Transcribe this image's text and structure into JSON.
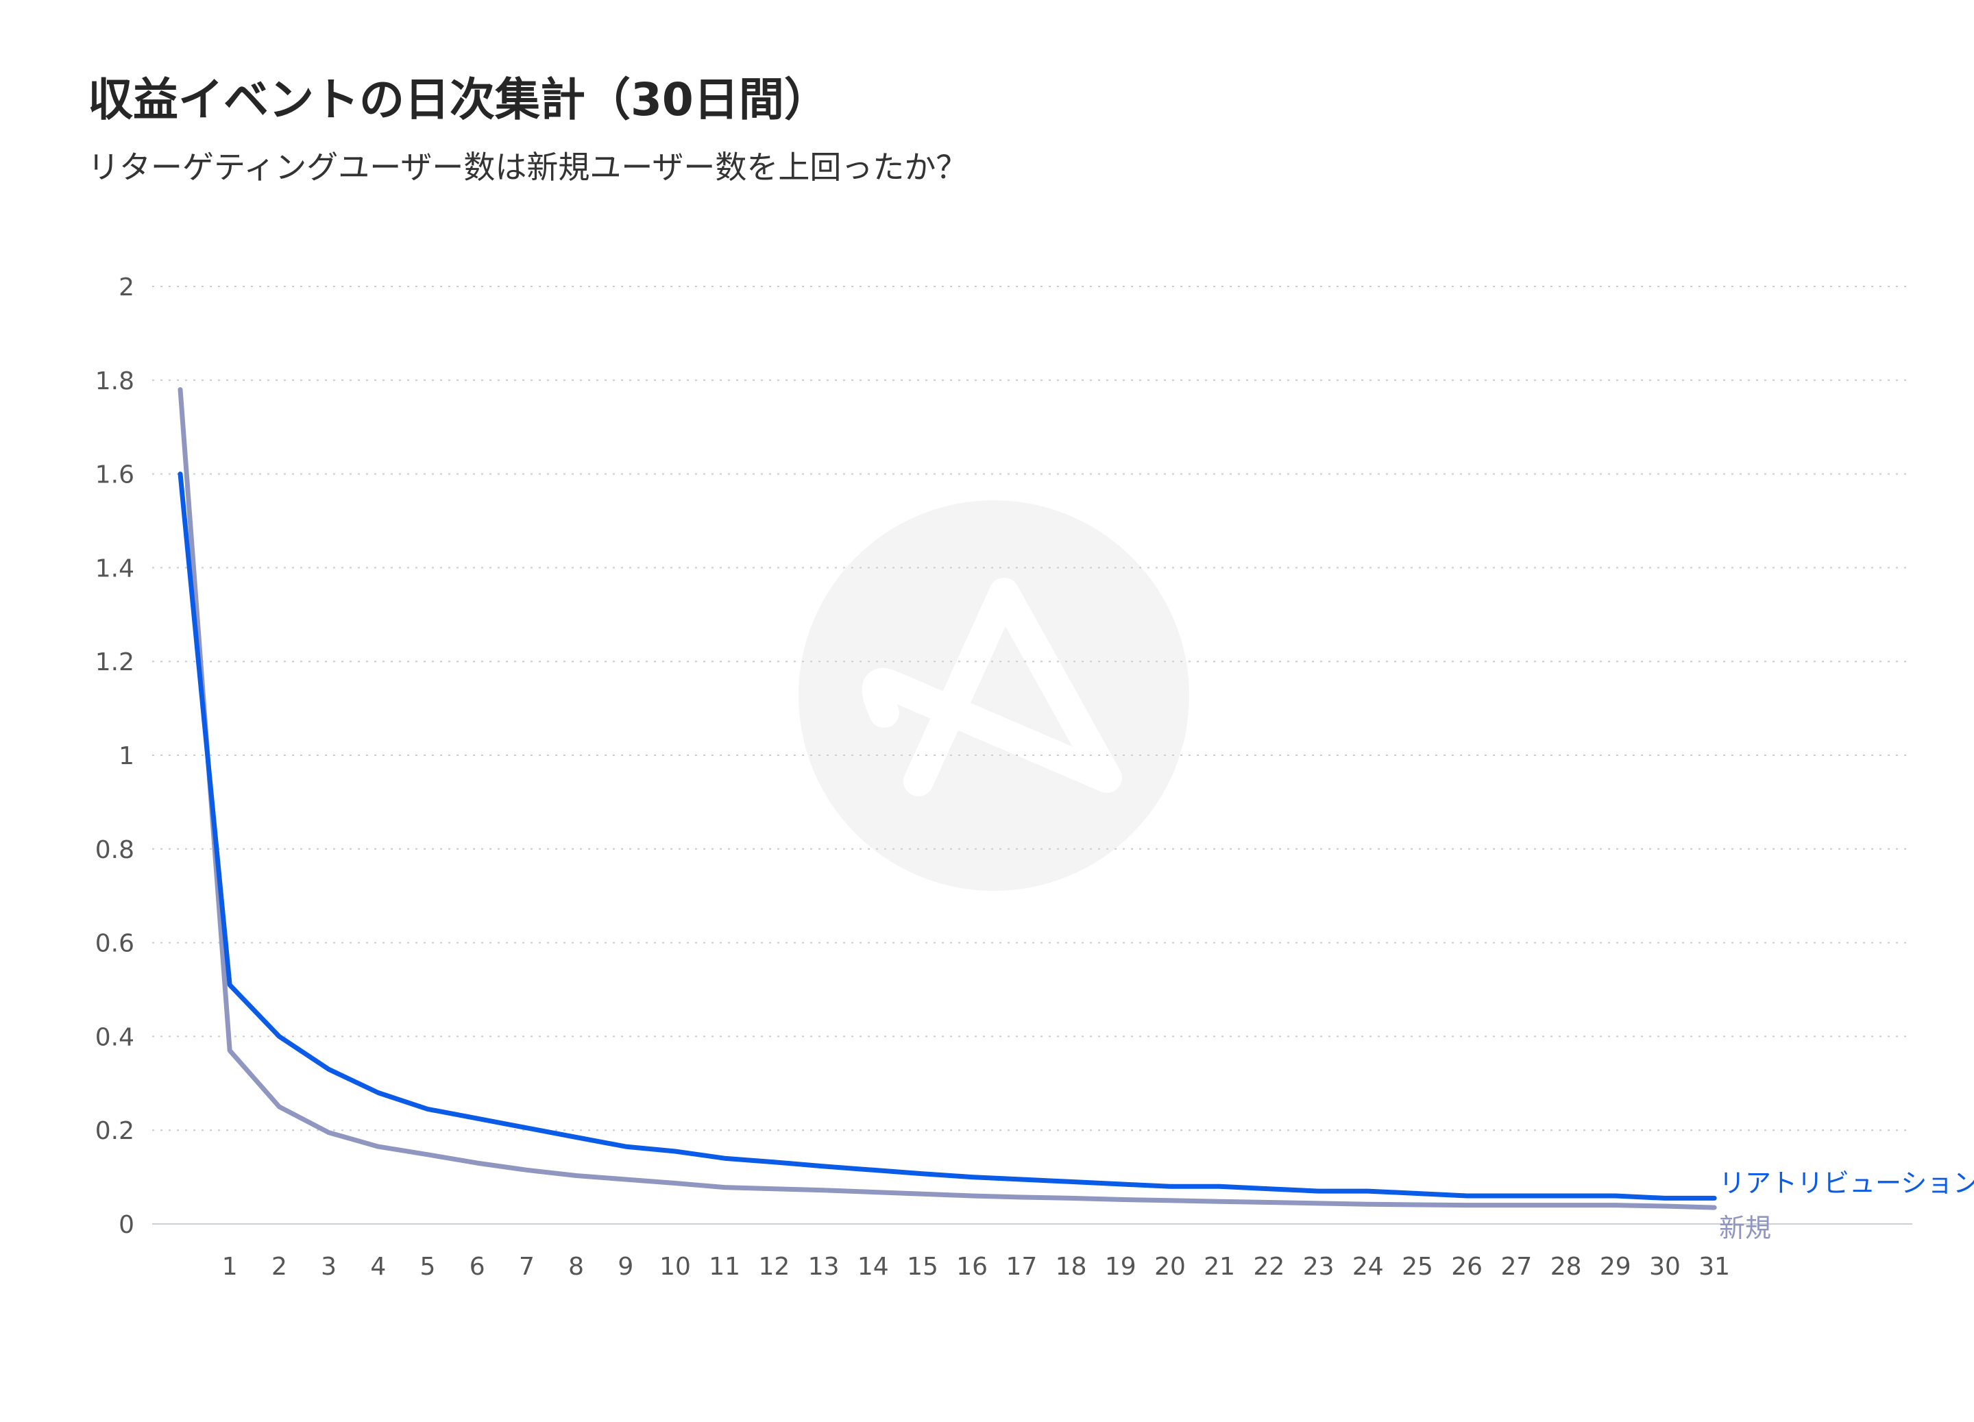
{
  "chart_data": {
    "type": "line",
    "title": "収益イベントの日次集計（30日間）",
    "subtitle": "リターゲティングユーザー数は新規ユーザー数を上回ったか？",
    "xlabel": "",
    "ylabel": "",
    "ylim": [
      0,
      2
    ],
    "yticks": [
      "0",
      "0.2",
      "0.4",
      "0.6",
      "0.8",
      "1",
      "1.2",
      "1.4",
      "1.6",
      "1.8",
      "2"
    ],
    "x": [
      0,
      1,
      2,
      3,
      4,
      5,
      6,
      7,
      8,
      9,
      10,
      11,
      12,
      13,
      14,
      15,
      16,
      17,
      18,
      19,
      20,
      21,
      22,
      23,
      24,
      25,
      26,
      27,
      28,
      29,
      30,
      31
    ],
    "xticks": [
      "1",
      "2",
      "3",
      "4",
      "5",
      "6",
      "7",
      "8",
      "9",
      "10",
      "11",
      "12",
      "13",
      "14",
      "15",
      "16",
      "17",
      "18",
      "19",
      "20",
      "21",
      "22",
      "23",
      "24",
      "25",
      "26",
      "27",
      "28",
      "29",
      "30",
      "31"
    ],
    "grid": true,
    "series": [
      {
        "name": "リアトリビューション",
        "color": "#0a5ce8",
        "values": [
          1.6,
          0.51,
          0.4,
          0.33,
          0.28,
          0.245,
          0.225,
          0.205,
          0.185,
          0.165,
          0.155,
          0.14,
          0.132,
          0.123,
          0.115,
          0.107,
          0.1,
          0.095,
          0.09,
          0.085,
          0.08,
          0.08,
          0.075,
          0.07,
          0.07,
          0.065,
          0.06,
          0.06,
          0.06,
          0.06,
          0.055,
          0.055
        ]
      },
      {
        "name": "新規",
        "color": "#8f96c0",
        "values": [
          1.78,
          0.37,
          0.25,
          0.195,
          0.165,
          0.148,
          0.13,
          0.115,
          0.103,
          0.095,
          0.087,
          0.078,
          0.075,
          0.072,
          0.068,
          0.064,
          0.06,
          0.057,
          0.055,
          0.052,
          0.05,
          0.048,
          0.046,
          0.044,
          0.042,
          0.041,
          0.04,
          0.04,
          0.04,
          0.04,
          0.038,
          0.035
        ]
      }
    ]
  },
  "watermark": {
    "name": "logo-watermark"
  }
}
